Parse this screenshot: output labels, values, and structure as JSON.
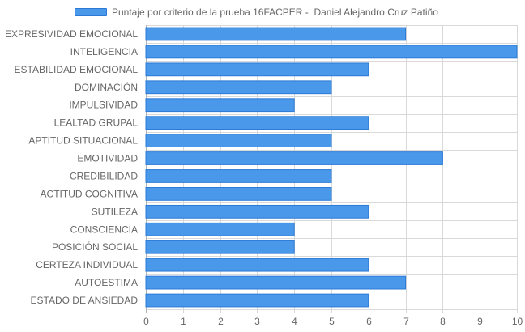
{
  "chart_data": {
    "type": "bar",
    "orientation": "horizontal",
    "categories": [
      "EXPRESIVIDAD EMOCIONAL",
      "INTELIGENCIA",
      "ESTABILIDAD EMOCIONAL",
      "DOMINACIÓN",
      "IMPULSIVIDAD",
      "LEALTAD GRUPAL",
      "APTITUD SITUACIONAL",
      "EMOTIVIDAD",
      "CREDIBILIDAD",
      "ACTITUD COGNITIVA",
      "SUTILEZA",
      "CONSCIENCIA",
      "POSICIÓN SOCIAL",
      "CERTEZA INDIVIDUAL",
      "AUTOESTIMA",
      "ESTADO DE ANSIEDAD"
    ],
    "series": [
      {
        "name": "Puntaje por criterio de la prueba 16FACPER -  Daniel Alejandro Cruz Patiño",
        "values": [
          7,
          10,
          6,
          5,
          4,
          6,
          5,
          8,
          5,
          5,
          6,
          4,
          4,
          6,
          7,
          6
        ]
      }
    ],
    "xlim": [
      0,
      10
    ],
    "x_ticks": [
      "0",
      "1",
      "2",
      "3",
      "4",
      "5",
      "6",
      "7",
      "8",
      "9",
      "10"
    ],
    "grid": true,
    "legend_position": "top",
    "colors": {
      "bar_fill": "#4a98e9",
      "bar_stroke": "#2b7ad6",
      "grid": "#d9d9d9",
      "axis": "#b3b3b3",
      "label": "#666666"
    }
  }
}
